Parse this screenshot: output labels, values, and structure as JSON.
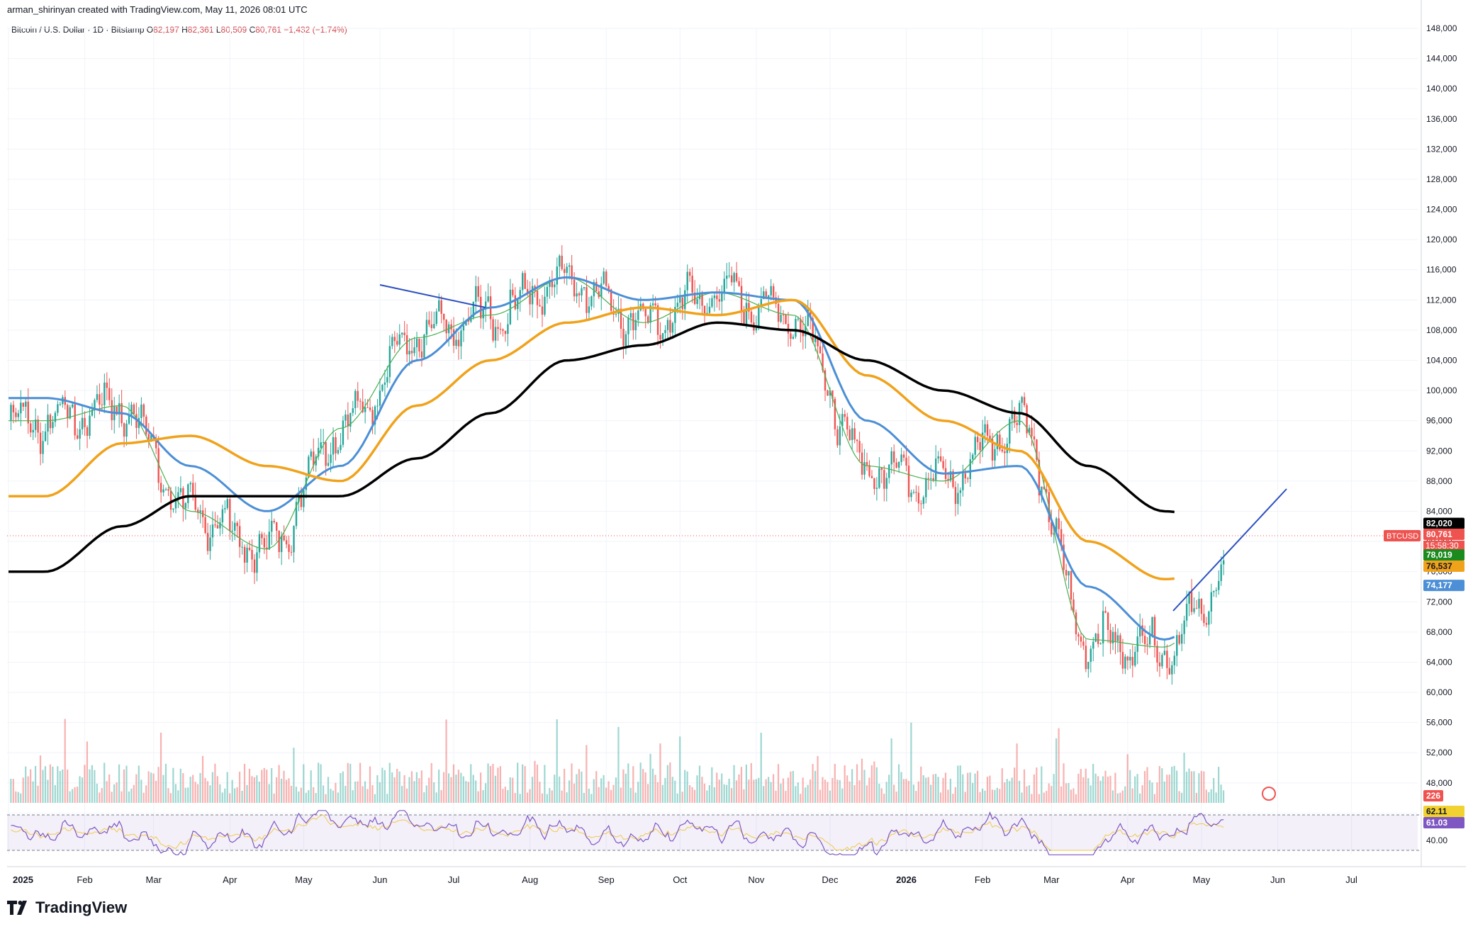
{
  "header": {
    "attribution": "arman_shirinyan created with TradingView.com, May 11, 2026 08:01 UTC",
    "symbol_title": "Bitcoin / U.S. Dollar · 1D · Bitstamp",
    "ohlc": {
      "o_label": "O",
      "o_value": "82,197",
      "h_label": "H",
      "h_value": "82,361",
      "l_label": "L",
      "l_value": "80,509",
      "c_label": "C",
      "c_value": "80,761",
      "change": "−1,432 (−1.74%)"
    }
  },
  "branding": {
    "logo_text": "TradingView"
  },
  "colors": {
    "up": "#26a69a",
    "down": "#ef5350",
    "ma_fast": "#4caf50",
    "ma_mid": "#4c8fd6",
    "ma_slow": "#f0a21b",
    "ma_long": "#000000",
    "trendline": "#2b4fbf",
    "rsi": "#7e57c2",
    "rsi_ma": "#f2c94c"
  },
  "chart_data": {
    "type": "line",
    "title": "Bitcoin / U.S. Dollar · 1D · Bitstamp",
    "y_axis_ticks": [
      "148,000",
      "144,000",
      "140,000",
      "136,000",
      "132,000",
      "128,000",
      "124,000",
      "120,000",
      "116,000",
      "112,000",
      "108,000",
      "104,000",
      "100,000",
      "96,000",
      "92,000",
      "88,000",
      "84,000",
      "80,000",
      "76,000",
      "72,000",
      "68,000",
      "64,000",
      "60,000",
      "56,000",
      "52,000",
      "48,000",
      "44,000",
      "40,000"
    ],
    "ylim": [
      40000,
      150000
    ],
    "x_axis_ticks": [
      "2025",
      "Feb",
      "Mar",
      "Apr",
      "May",
      "Jun",
      "Jul",
      "Aug",
      "Sep",
      "Oct",
      "Nov",
      "Dec",
      "2026",
      "Feb",
      "Mar",
      "Apr",
      "May",
      "Jun",
      "Jul"
    ],
    "price_close_monthly": {
      "x": [
        "2025-01",
        "2025-02",
        "2025-03",
        "2025-04",
        "2025-05",
        "2025-06",
        "2025-07",
        "2025-08",
        "2025-09",
        "2025-10",
        "2025-11",
        "2025-12",
        "2026-01",
        "2026-02",
        "2026-03",
        "2026-04",
        "2026-05"
      ],
      "close": [
        96000,
        98000,
        84000,
        79000,
        95000,
        107000,
        110000,
        115000,
        109000,
        113000,
        110000,
        90000,
        88000,
        96000,
        67000,
        66000,
        77000
      ]
    },
    "series": [
      {
        "values": [
          96000,
          98000,
          84000,
          79000,
          95000,
          107000,
          110000,
          115000,
          109000,
          113000,
          110000,
          90000,
          88000,
          96000,
          67000,
          66000,
          77000
        ]
      },
      {
        "values": [
          99000,
          97000,
          90000,
          84000,
          90000,
          104000,
          111000,
          115000,
          112000,
          113000,
          112000,
          96000,
          89000,
          90000,
          74000,
          67000,
          74177
        ]
      },
      {
        "values": [
          86000,
          93000,
          94000,
          90000,
          88000,
          98000,
          104000,
          109000,
          111000,
          110000,
          112000,
          102000,
          96000,
          92000,
          80000,
          75000,
          76537
        ]
      },
      {
        "values": [
          76000,
          82000,
          86000,
          86000,
          86000,
          91000,
          97000,
          104000,
          106000,
          109000,
          108000,
          104000,
          100000,
          97000,
          90000,
          84000,
          82020
        ]
      }
    ],
    "price_labels": {
      "symbol": "BTCUSD",
      "ma_long": "82,020",
      "last": "80,761",
      "countdown": "15:58:30",
      "ma_fast": "78,019",
      "ma_slow": "76,537",
      "ma_mid": "74,177",
      "volume": "226",
      "rsi_ma": "62.11",
      "rsi": "61.03",
      "rsi_tick_40": "40.00"
    },
    "volume_panel": true,
    "rsi_panel": {
      "upper": 70,
      "lower": 30,
      "last": 61.03
    }
  }
}
